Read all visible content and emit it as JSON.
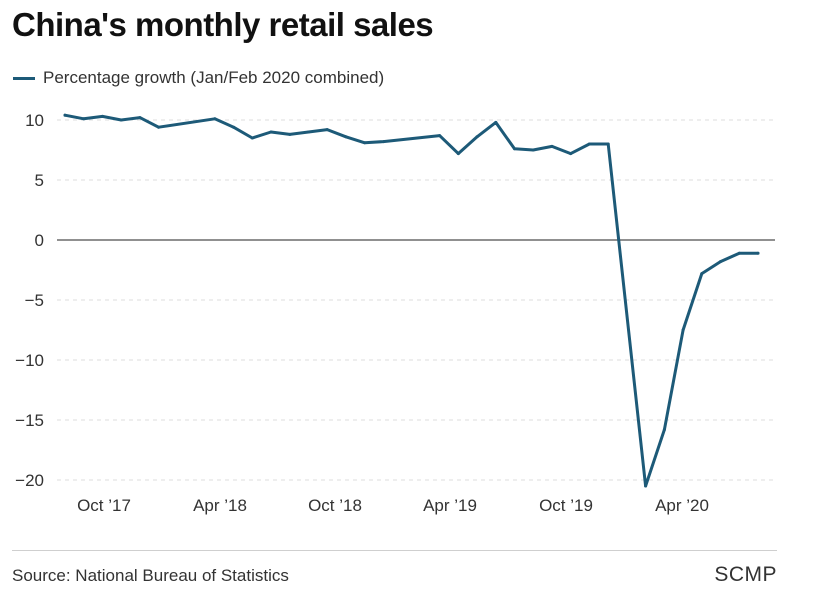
{
  "title": "China's monthly retail sales",
  "source": "Source: National Bureau of Statistics",
  "brand": "SCMP",
  "colors": {
    "series": "#1d5a78",
    "grid": "#dddddd",
    "zero": "#222222"
  },
  "chart_data": {
    "type": "line",
    "title": "China's monthly retail sales",
    "xlabel": "",
    "ylabel": "",
    "ylim": [
      -21,
      10.5
    ],
    "yticks": [
      10,
      5,
      0,
      -5,
      -10,
      -15,
      -20
    ],
    "xtick_labels": [
      "Oct ’17",
      "Apr ’18",
      "Oct ’18",
      "Apr ’19",
      "Oct ’19",
      "Apr ’20"
    ],
    "grid": true,
    "legend": "top-left",
    "x": [
      "2017-07",
      "2017-08",
      "2017-09",
      "2017-10",
      "2017-11",
      "2017-12",
      "2018-03",
      "2018-04",
      "2018-05",
      "2018-06",
      "2018-07",
      "2018-08",
      "2018-09",
      "2018-10",
      "2018-11",
      "2018-12",
      "2019-03",
      "2019-04",
      "2019-05",
      "2019-06",
      "2019-07",
      "2019-08",
      "2019-09",
      "2019-10",
      "2019-11",
      "2019-12",
      "2020-02",
      "2020-03",
      "2020-04",
      "2020-05",
      "2020-06",
      "2020-07",
      "2020-08"
    ],
    "series": [
      {
        "name": "Percentage growth (Jan/Feb 2020 combined)",
        "values": [
          10.4,
          10.1,
          10.3,
          10.0,
          10.2,
          9.4,
          10.1,
          9.4,
          8.5,
          9.0,
          8.8,
          9.0,
          9.2,
          8.6,
          8.1,
          8.2,
          8.7,
          7.2,
          8.6,
          9.8,
          7.6,
          7.5,
          7.8,
          7.2,
          8.0,
          8.0,
          -20.5,
          -15.8,
          -7.5,
          -2.8,
          -1.8,
          -1.1,
          -1.1
        ]
      }
    ]
  }
}
